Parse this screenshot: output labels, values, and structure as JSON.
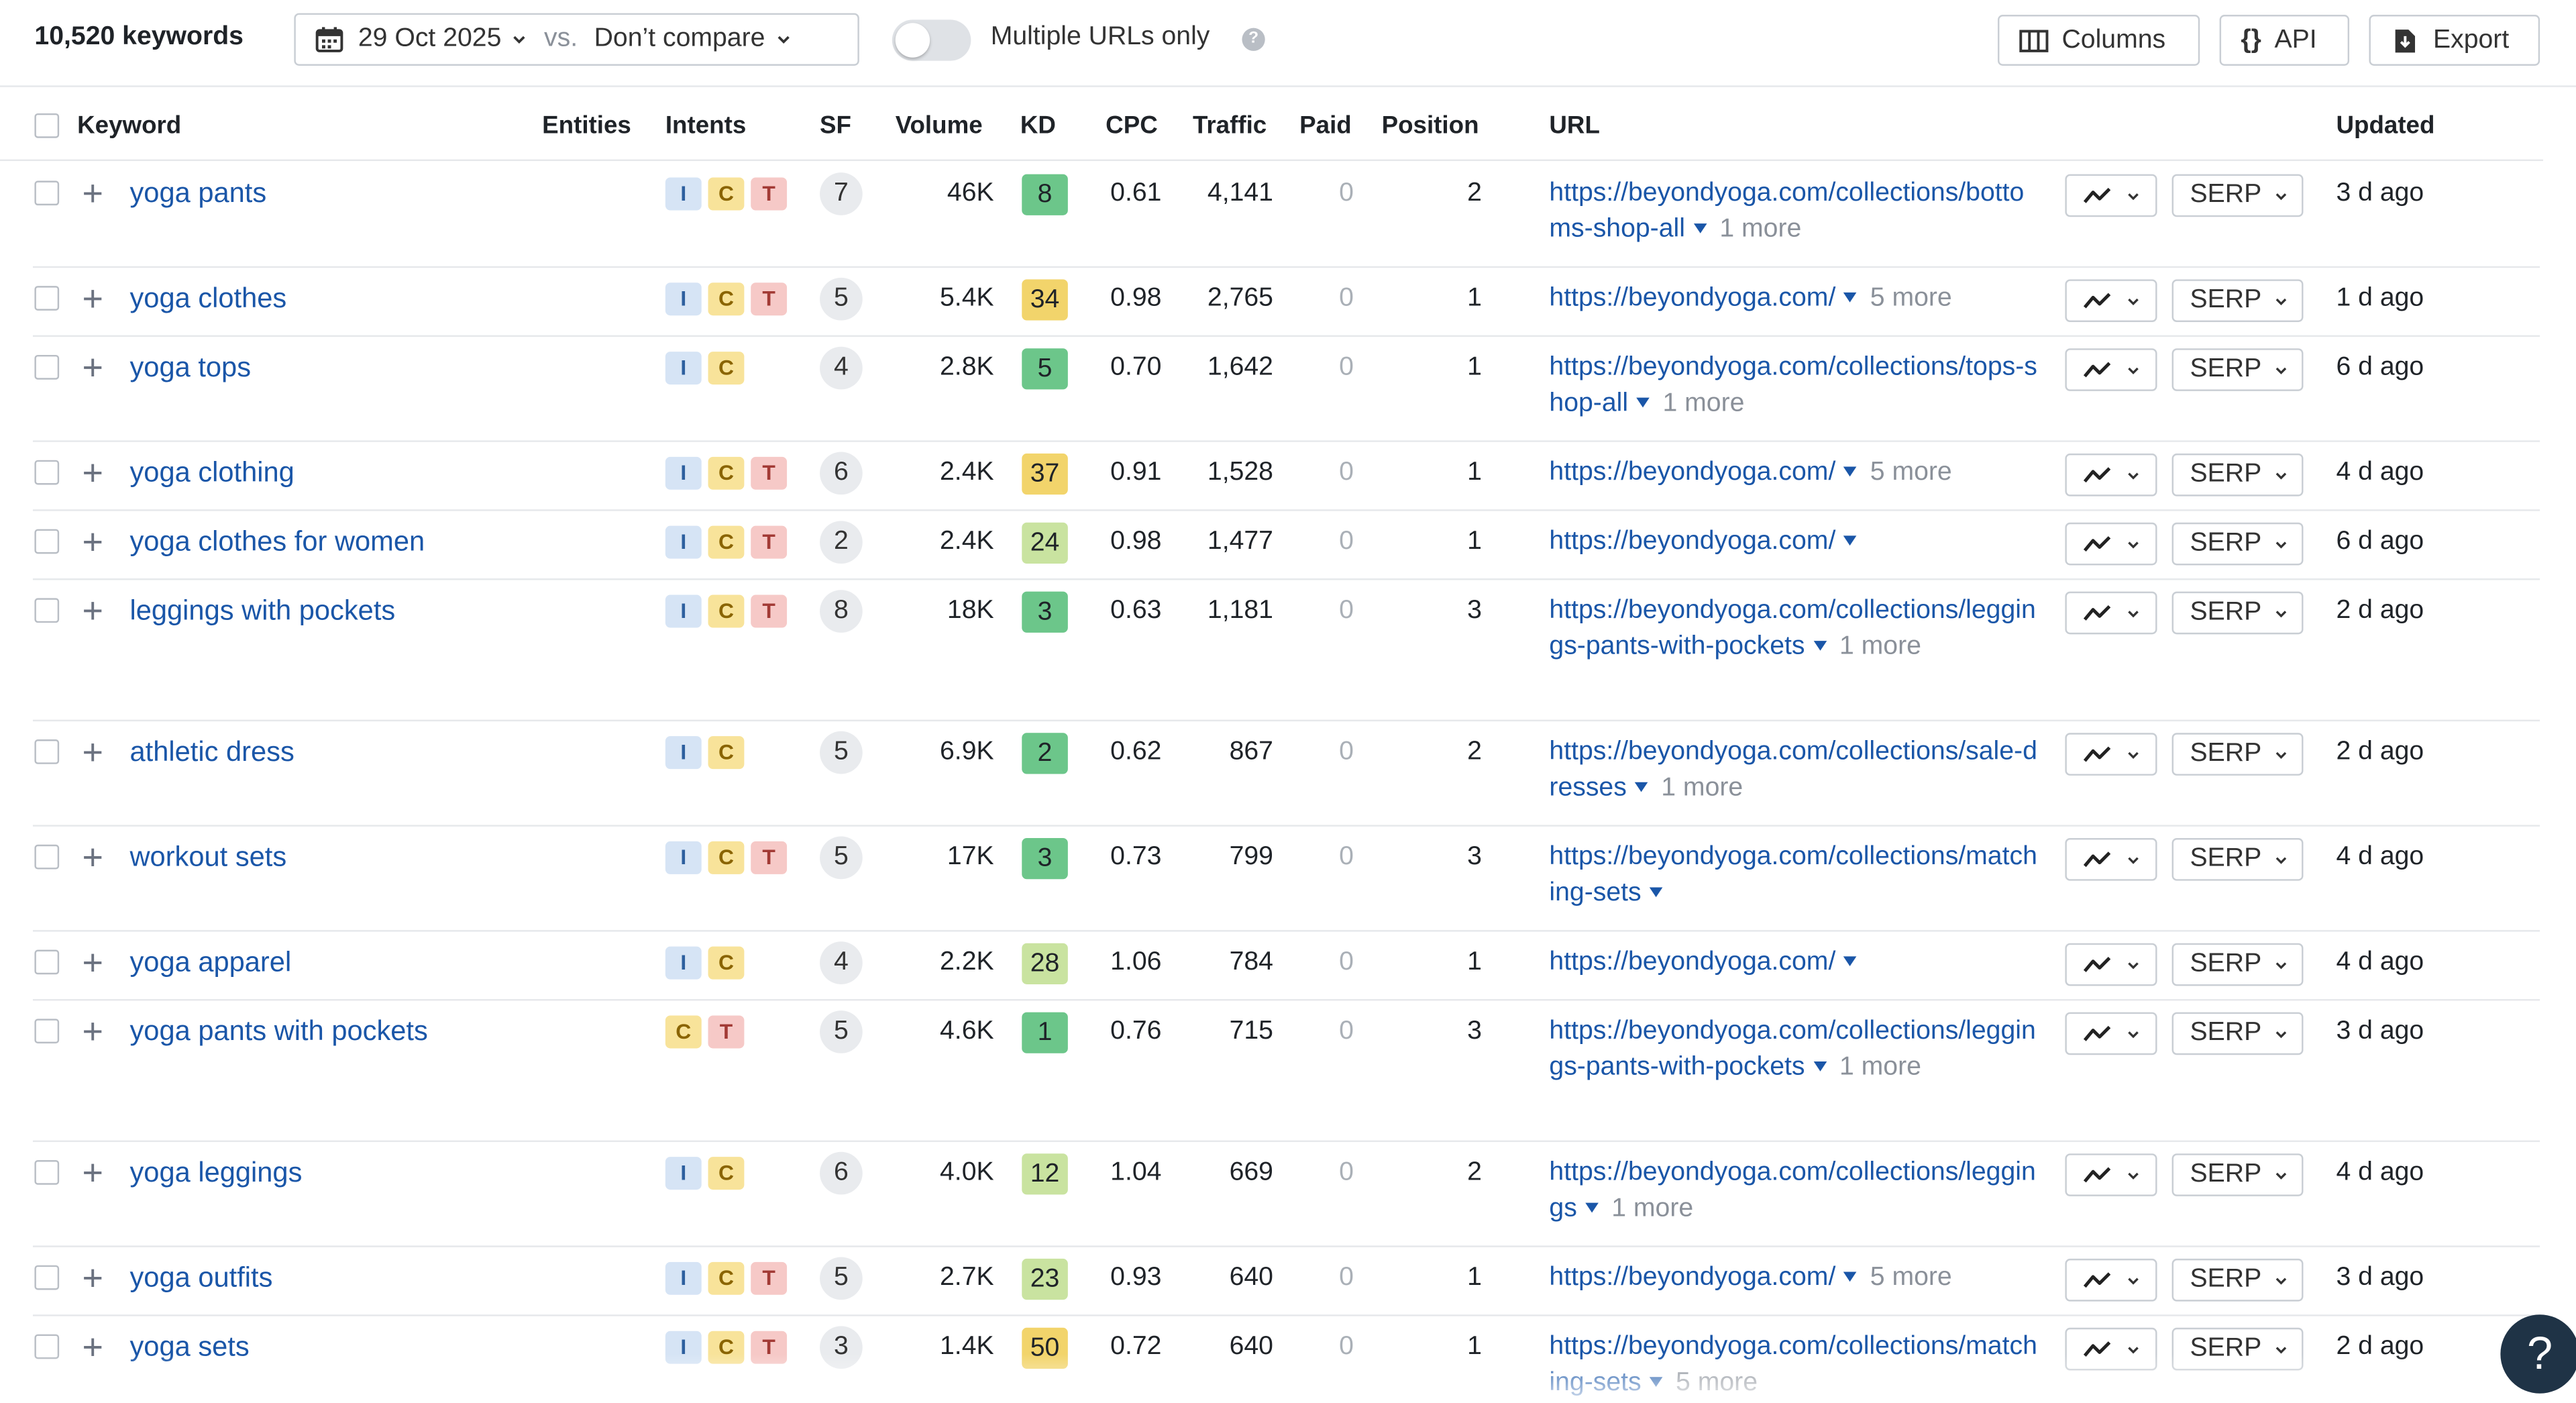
{
  "toolbar": {
    "keyword_count": "10,520 keywords",
    "date": "29 Oct 2025",
    "vs_label": "vs.",
    "compare": "Don’t compare",
    "toggle_label": "Multiple URLs only",
    "toggle_on": false,
    "help_icon": "question-circle-icon",
    "columns_label": "Columns",
    "api_label": "API",
    "export_label": "Export"
  },
  "table": {
    "headers": {
      "keyword": "Keyword",
      "entities": "Entities",
      "intents": "Intents",
      "sf": "SF",
      "volume": "Volume",
      "kd": "KD",
      "cpc": "CPC",
      "traffic": "Traffic",
      "paid": "Paid",
      "position": "Position",
      "url": "URL",
      "updated": "Updated"
    },
    "serp_label": "SERP",
    "rows": [
      {
        "keyword": "yoga pants",
        "intents": [
          "I",
          "C",
          "T"
        ],
        "sf": "7",
        "volume": "46K",
        "kd": "8",
        "cpc": "0.61",
        "traffic": "4,141",
        "paid": "0",
        "position": "2",
        "url": "https://beyondyoga.com/collections/bottoms-shop-all",
        "url_more": "1 more",
        "updated": "3 d ago"
      },
      {
        "keyword": "yoga clothes",
        "intents": [
          "I",
          "C",
          "T"
        ],
        "sf": "5",
        "volume": "5.4K",
        "kd": "34",
        "cpc": "0.98",
        "traffic": "2,765",
        "paid": "0",
        "position": "1",
        "url": "https://beyondyoga.com/",
        "url_more": "5 more",
        "updated": "1 d ago"
      },
      {
        "keyword": "yoga tops",
        "intents": [
          "I",
          "C"
        ],
        "sf": "4",
        "volume": "2.8K",
        "kd": "5",
        "cpc": "0.70",
        "traffic": "1,642",
        "paid": "0",
        "position": "1",
        "url": "https://beyondyoga.com/collections/tops-shop-all",
        "url_more": "1 more",
        "updated": "6 d ago"
      },
      {
        "keyword": "yoga clothing",
        "intents": [
          "I",
          "C",
          "T"
        ],
        "sf": "6",
        "volume": "2.4K",
        "kd": "37",
        "cpc": "0.91",
        "traffic": "1,528",
        "paid": "0",
        "position": "1",
        "url": "https://beyondyoga.com/",
        "url_more": "5 more",
        "updated": "4 d ago"
      },
      {
        "keyword": "yoga clothes for women",
        "intents": [
          "I",
          "C",
          "T"
        ],
        "sf": "2",
        "volume": "2.4K",
        "kd": "24",
        "cpc": "0.98",
        "traffic": "1,477",
        "paid": "0",
        "position": "1",
        "url": "https://beyondyoga.com/",
        "url_more": "",
        "updated": "6 d ago"
      },
      {
        "keyword": "leggings with pockets",
        "intents": [
          "I",
          "C",
          "T"
        ],
        "sf": "8",
        "volume": "18K",
        "kd": "3",
        "cpc": "0.63",
        "traffic": "1,181",
        "paid": "0",
        "position": "3",
        "url": "https://beyondyoga.com/collections/leggings-pants-with-pockets",
        "url_more": "1 more",
        "updated": "2 d ago"
      },
      {
        "keyword": "athletic dress",
        "intents": [
          "I",
          "C"
        ],
        "sf": "5",
        "volume": "6.9K",
        "kd": "2",
        "cpc": "0.62",
        "traffic": "867",
        "paid": "0",
        "position": "2",
        "url": "https://beyondyoga.com/collections/sale-dresses",
        "url_more": "1 more",
        "updated": "2 d ago"
      },
      {
        "keyword": "workout sets",
        "intents": [
          "I",
          "C",
          "T"
        ],
        "sf": "5",
        "volume": "17K",
        "kd": "3",
        "cpc": "0.73",
        "traffic": "799",
        "paid": "0",
        "position": "3",
        "url": "https://beyondyoga.com/collections/matching-sets",
        "url_more": "",
        "updated": "4 d ago"
      },
      {
        "keyword": "yoga apparel",
        "intents": [
          "I",
          "C"
        ],
        "sf": "4",
        "volume": "2.2K",
        "kd": "28",
        "cpc": "1.06",
        "traffic": "784",
        "paid": "0",
        "position": "1",
        "url": "https://beyondyoga.com/",
        "url_more": "",
        "updated": "4 d ago"
      },
      {
        "keyword": "yoga pants with pockets",
        "intents": [
          "C",
          "T"
        ],
        "sf": "5",
        "volume": "4.6K",
        "kd": "1",
        "cpc": "0.76",
        "traffic": "715",
        "paid": "0",
        "position": "3",
        "url": "https://beyondyoga.com/collections/leggings-pants-with-pockets",
        "url_more": "1 more",
        "updated": "3 d ago"
      },
      {
        "keyword": "yoga leggings",
        "intents": [
          "I",
          "C"
        ],
        "sf": "6",
        "volume": "4.0K",
        "kd": "12",
        "cpc": "1.04",
        "traffic": "669",
        "paid": "0",
        "position": "2",
        "url": "https://beyondyoga.com/collections/leggings",
        "url_more": "1 more",
        "updated": "4 d ago"
      },
      {
        "keyword": "yoga outfits",
        "intents": [
          "I",
          "C",
          "T"
        ],
        "sf": "5",
        "volume": "2.7K",
        "kd": "23",
        "cpc": "0.93",
        "traffic": "640",
        "paid": "0",
        "position": "1",
        "url": "https://beyondyoga.com/",
        "url_more": "5 more",
        "updated": "3 d ago"
      },
      {
        "keyword": "yoga sets",
        "intents": [
          "I",
          "C",
          "T"
        ],
        "sf": "3",
        "volume": "1.4K",
        "kd": "50",
        "cpc": "0.72",
        "traffic": "640",
        "paid": "0",
        "position": "1",
        "url": "https://beyondyoga.com/collections/matching-sets",
        "url_more": "5 more",
        "updated": "2 d ago"
      }
    ]
  },
  "colors": {
    "link": "#1a56a8",
    "kd_easy": "#6cc68a",
    "kd_medium": "#c9e3a0",
    "kd_hard": "#f2d46b",
    "fab": "#1f3346"
  },
  "help_button": "?"
}
